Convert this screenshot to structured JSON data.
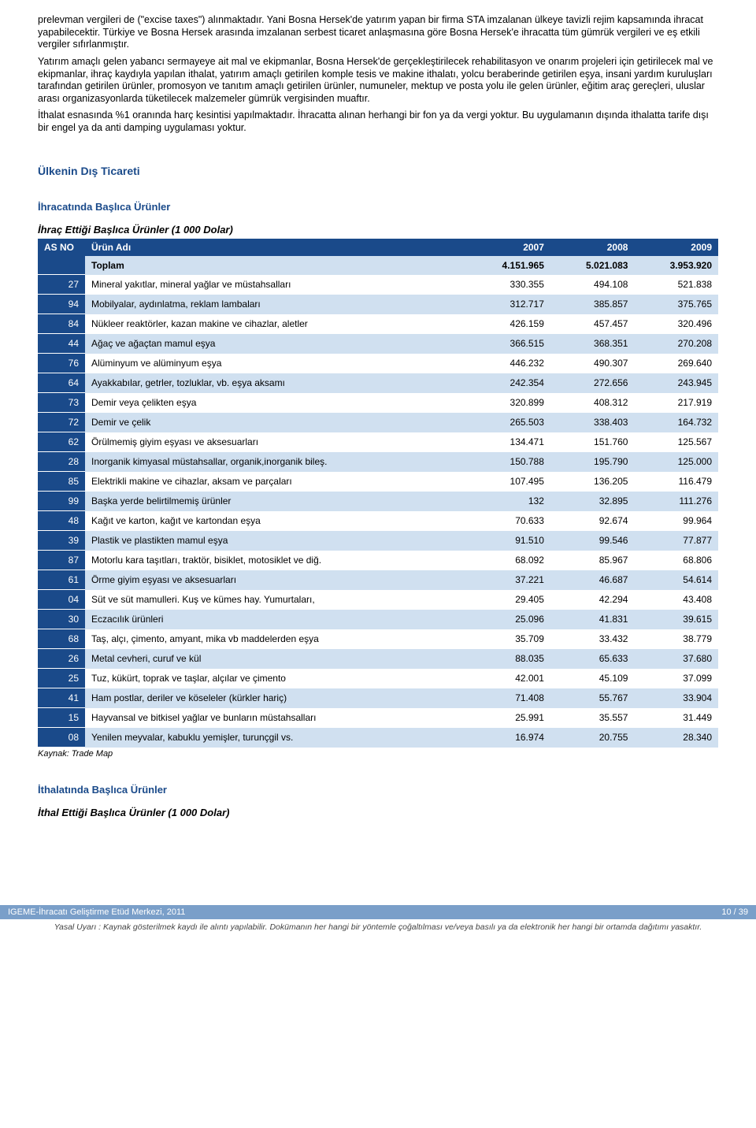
{
  "paragraphs": {
    "p1": "prelevman vergileri de (\"excise taxes\") alınmaktadır. Yani Bosna Hersek'de yatırım yapan bir firma STA imzalanan ülkeye tavizli rejim kapsamında ihracat yapabilecektir. Türkiye ve Bosna Hersek arasında imzalanan serbest ticaret anlaşmasına göre Bosna Hersek'e ihracatta tüm gümrük vergileri ve eş etkili vergiler sıfırlanmıştır.",
    "p2": "Yatırım amaçlı gelen yabancı sermayeye ait mal ve ekipmanlar, Bosna Hersek'de gerçekleştirilecek rehabilitasyon ve onarım projeleri için getirilecek mal ve ekipmanlar, ihraç kaydıyla yapılan ithalat, yatırım amaçlı getirilen komple tesis ve makine ithalatı, yolcu beraberinde getirilen eşya, insani yardım kuruluşları tarafından getirilen ürünler, promosyon ve tanıtım amaçlı getirilen ürünler, numuneler, mektup ve posta yolu ile gelen ürünler, eğitim araç gereçleri, uluslar arası organizasyonlarda tüketilecek malzemeler gümrük vergisinden muaftır.",
    "p3": "İthalat esnasında %1 oranında harç kesintisi yapılmaktadır. İhracatta alınan herhangi bir fon ya da vergi yoktur. Bu uygulamanın dışında ithalatta tarife dışı bir engel ya da anti damping uygulaması yoktur."
  },
  "headings": {
    "h2": "Ülkenin Dış Ticareti",
    "h3_export": "İhracatında Başlıca Ürünler",
    "h4_export": "İhraç Ettiği Başlıca Ürünler (1 000 Dolar)",
    "h3_import": "İthalatında Başlıca Ürünler",
    "h4_import": "İthal Ettiği Başlıca Ürünler (1 000 Dolar)"
  },
  "table": {
    "headers": {
      "c0": "AS NO",
      "c1": "Ürün Adı",
      "c2": "2007",
      "c3": "2008",
      "c4": "2009"
    },
    "total": {
      "label": "Toplam",
      "y07": "4.151.965",
      "y08": "5.021.083",
      "y09": "3.953.920"
    },
    "rows": [
      {
        "code": "27",
        "name": "Mineral yakıtlar,  mineral yağlar ve müstahsalları",
        "y07": "330.355",
        "y08": "494.108",
        "y09": "521.838"
      },
      {
        "code": "94",
        "name": "Mobilyalar, aydınlatma, reklam lambaları",
        "y07": "312.717",
        "y08": "385.857",
        "y09": "375.765"
      },
      {
        "code": "84",
        "name": "Nükleer reaktörler, kazan makine ve cihazlar, aletler",
        "y07": "426.159",
        "y08": "457.457",
        "y09": "320.496"
      },
      {
        "code": "44",
        "name": "Ağaç ve ağaçtan mamul eşya",
        "y07": "366.515",
        "y08": "368.351",
        "y09": "270.208"
      },
      {
        "code": "76",
        "name": "Alüminyum ve alüminyum eşya",
        "y07": "446.232",
        "y08": "490.307",
        "y09": "269.640"
      },
      {
        "code": "64",
        "name": "Ayakkabılar, getrler, tozluklar, vb. eşya aksamı",
        "y07": "242.354",
        "y08": "272.656",
        "y09": "243.945"
      },
      {
        "code": "73",
        "name": "Demir veya çelikten eşya",
        "y07": "320.899",
        "y08": "408.312",
        "y09": "217.919"
      },
      {
        "code": "72",
        "name": "Demir ve çelik",
        "y07": "265.503",
        "y08": "338.403",
        "y09": "164.732"
      },
      {
        "code": "62",
        "name": "Örülmemiş giyim eşyası ve aksesuarları",
        "y07": "134.471",
        "y08": "151.760",
        "y09": "125.567"
      },
      {
        "code": "28",
        "name": "Inorganik kimyasal müstahsallar, organik,inorganik bileş.",
        "y07": "150.788",
        "y08": "195.790",
        "y09": "125.000"
      },
      {
        "code": "85",
        "name": "Elektrikli makine ve cihazlar, aksam ve parçaları",
        "y07": "107.495",
        "y08": "136.205",
        "y09": "116.479"
      },
      {
        "code": "99",
        "name": "Başka yerde belirtilmemiş ürünler",
        "y07": "132",
        "y08": "32.895",
        "y09": "111.276"
      },
      {
        "code": "48",
        "name": "Kağıt ve karton, kağıt ve kartondan eşya",
        "y07": "70.633",
        "y08": "92.674",
        "y09": "99.964"
      },
      {
        "code": "39",
        "name": "Plastik ve plastikten mamul eşya",
        "y07": "91.510",
        "y08": "99.546",
        "y09": "77.877"
      },
      {
        "code": "87",
        "name": "Motorlu kara taşıtları, traktör, bisiklet, motosiklet ve diğ.",
        "y07": "68.092",
        "y08": "85.967",
        "y09": "68.806"
      },
      {
        "code": "61",
        "name": "Örme giyim eşyası ve aksesuarları",
        "y07": "37.221",
        "y08": "46.687",
        "y09": "54.614"
      },
      {
        "code": "04",
        "name": "Süt ve süt mamulleri. Kuş ve kümes hay. Yumurtaları,",
        "y07": "29.405",
        "y08": "42.294",
        "y09": "43.408"
      },
      {
        "code": "30",
        "name": "Eczacılık ürünleri",
        "y07": "25.096",
        "y08": "41.831",
        "y09": "39.615"
      },
      {
        "code": "68",
        "name": "Taş, alçı, çimento, amyant, mika vb maddelerden eşya",
        "y07": "35.709",
        "y08": "33.432",
        "y09": "38.779"
      },
      {
        "code": "26",
        "name": "Metal cevheri, curuf ve kül",
        "y07": "88.035",
        "y08": "65.633",
        "y09": "37.680"
      },
      {
        "code": "25",
        "name": "Tuz, kükürt, toprak ve taşlar, alçılar ve çimento",
        "y07": "42.001",
        "y08": "45.109",
        "y09": "37.099"
      },
      {
        "code": "41",
        "name": "Ham postlar, deriler ve köseleler (kürkler hariç)",
        "y07": "71.408",
        "y08": "55.767",
        "y09": "33.904"
      },
      {
        "code": "15",
        "name": "Hayvansal ve bitkisel yağlar ve bunların müstahsalları",
        "y07": "25.991",
        "y08": "35.557",
        "y09": "31.449"
      },
      {
        "code": "08",
        "name": "Yenilen meyvalar, kabuklu yemişler, turunçgil vs.",
        "y07": "16.974",
        "y08": "20.755",
        "y09": "28.340"
      }
    ]
  },
  "source": "Kaynak: Trade Map",
  "footer": {
    "left": "IGEME-İhracatı Geliştirme Etüd Merkezi, 2011",
    "right": "10 / 39",
    "legal": "Yasal Uyarı : Kaynak gösterilmek kaydı ile alıntı yapılabilir. Dokümanın her hangi bir yöntemle çoğaltılması ve/veya basılı ya da elektronik her hangi bir ortamda dağıtımı yasaktır."
  }
}
